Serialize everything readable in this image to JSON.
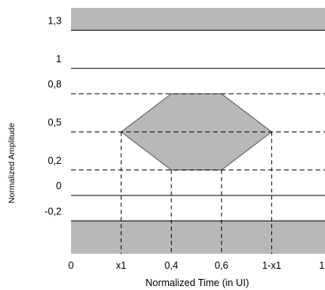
{
  "chart_data": {
    "type": "eye-mask",
    "xlabel": "Normalized Time (in UI)",
    "ylabel": "Normalized Amplitude",
    "x_ticks": [
      {
        "value": 0,
        "label": "0"
      },
      {
        "value": 0.2,
        "label": "x1"
      },
      {
        "value": 0.4,
        "label": "0,4"
      },
      {
        "value": 0.6,
        "label": "0,6"
      },
      {
        "value": 0.8,
        "label": "1-x1"
      },
      {
        "value": 1,
        "label": "1"
      }
    ],
    "y_ticks": [
      {
        "value": 1.3,
        "label": "1,3"
      },
      {
        "value": 1.0,
        "label": "1"
      },
      {
        "value": 0.8,
        "label": "0,8"
      },
      {
        "value": 0.5,
        "label": "0,5"
      },
      {
        "value": 0.2,
        "label": "0,2"
      },
      {
        "value": 0.0,
        "label": "0"
      },
      {
        "value": -0.2,
        "label": "-0,2"
      }
    ],
    "solid_y_lines": [
      1.3,
      1.0,
      0.0,
      -0.2
    ],
    "dashed_y_lines": [
      0.8,
      0.5,
      0.2
    ],
    "dashed_x_lines": [
      0.2,
      0.4,
      0.6,
      0.8
    ],
    "mask_polygon": [
      [
        0.2,
        0.5
      ],
      [
        0.4,
        0.8
      ],
      [
        0.6,
        0.8
      ],
      [
        0.8,
        0.5
      ],
      [
        0.6,
        0.2
      ],
      [
        0.4,
        0.2
      ]
    ],
    "upper_keepout_min": 1.3,
    "lower_keepout_max": -0.2,
    "fill_color": "#b8b8b8",
    "line_color": "#000000"
  }
}
